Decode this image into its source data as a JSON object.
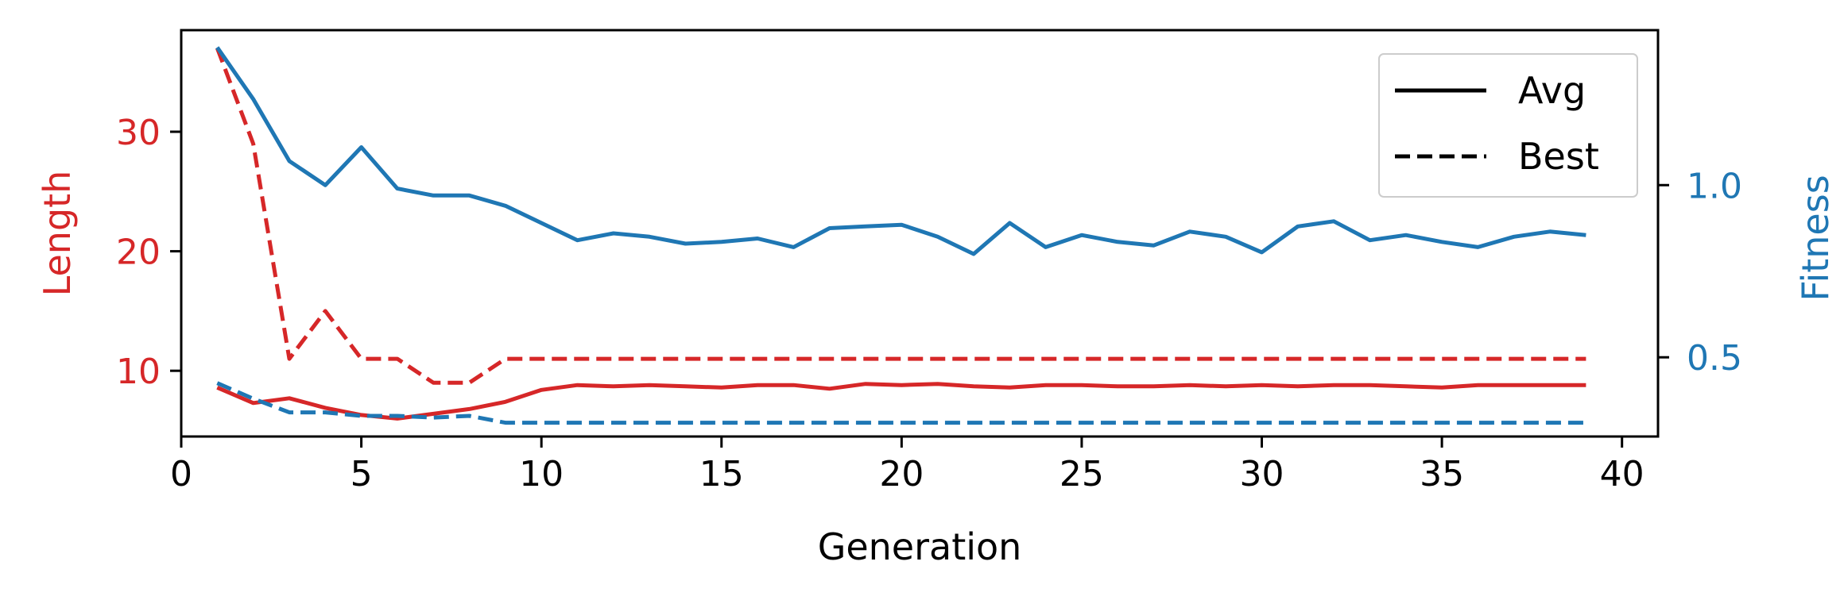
{
  "chart_data": {
    "type": "line",
    "xlabel": "Generation",
    "ylabel_left": "Length",
    "ylabel_right": "Fitness",
    "xlim": [
      0,
      41
    ],
    "ylim_left": [
      4.5,
      38.5
    ],
    "ylim_right": [
      0.27,
      1.45
    ],
    "xticks": [
      0,
      5,
      10,
      15,
      20,
      25,
      30,
      35,
      40
    ],
    "yticks_left": [
      10,
      20,
      30
    ],
    "yticks_right": [
      0.5,
      1.0
    ],
    "xtick_labels": [
      "0",
      "5",
      "10",
      "15",
      "20",
      "25",
      "30",
      "35",
      "40"
    ],
    "yticks_left_labels": [
      "10",
      "20",
      "30"
    ],
    "yticks_right_labels": [
      "0.5",
      "1.0"
    ],
    "grid": false,
    "legend_position": "top-right",
    "legend": [
      {
        "label": "Avg",
        "style": "solid"
      },
      {
        "label": "Best",
        "style": "dashed"
      }
    ],
    "colors": {
      "length": "#d62728",
      "fitness": "#1f77b4"
    },
    "x": [
      1,
      2,
      3,
      4,
      5,
      6,
      7,
      8,
      9,
      10,
      11,
      12,
      13,
      14,
      15,
      16,
      17,
      18,
      19,
      20,
      21,
      22,
      23,
      24,
      25,
      26,
      27,
      28,
      29,
      30,
      31,
      32,
      33,
      34,
      35,
      36,
      37,
      38,
      39
    ],
    "series": [
      {
        "axis": "left",
        "color": "#d62728",
        "style": "solid",
        "values": [
          8.6,
          7.3,
          7.7,
          6.9,
          6.3,
          6.0,
          6.4,
          6.8,
          7.4,
          8.4,
          8.8,
          8.7,
          8.8,
          8.7,
          8.6,
          8.8,
          8.8,
          8.5,
          8.9,
          8.8,
          8.9,
          8.7,
          8.6,
          8.8,
          8.8,
          8.7,
          8.7,
          8.8,
          8.7,
          8.8,
          8.7,
          8.8,
          8.8,
          8.7,
          8.6,
          8.8,
          8.8,
          8.8,
          8.8
        ]
      },
      {
        "axis": "left",
        "color": "#d62728",
        "style": "dashed",
        "values": [
          37.0,
          29.0,
          11.0,
          15.0,
          11.0,
          11.0,
          9.0,
          9.0,
          11.0,
          11.0,
          11.0,
          11.0,
          11.0,
          11.0,
          11.0,
          11.0,
          11.0,
          11.0,
          11.0,
          11.0,
          11.0,
          11.0,
          11.0,
          11.0,
          11.0,
          11.0,
          11.0,
          11.0,
          11.0,
          11.0,
          11.0,
          11.0,
          11.0,
          11.0,
          11.0,
          11.0,
          11.0,
          11.0,
          11.0
        ]
      },
      {
        "axis": "right",
        "color": "#1f77b4",
        "style": "solid",
        "values": [
          1.4,
          1.25,
          1.07,
          1.0,
          1.11,
          0.99,
          0.97,
          0.97,
          0.94,
          0.89,
          0.84,
          0.86,
          0.85,
          0.83,
          0.835,
          0.845,
          0.82,
          0.875,
          0.88,
          0.885,
          0.85,
          0.8,
          0.89,
          0.82,
          0.855,
          0.835,
          0.825,
          0.865,
          0.85,
          0.805,
          0.88,
          0.895,
          0.84,
          0.855,
          0.835,
          0.82,
          0.85,
          0.865,
          0.855
        ]
      },
      {
        "axis": "right",
        "color": "#1f77b4",
        "style": "dashed",
        "values": [
          0.425,
          0.38,
          0.34,
          0.34,
          0.33,
          0.33,
          0.325,
          0.33,
          0.31,
          0.31,
          0.31,
          0.31,
          0.31,
          0.31,
          0.31,
          0.31,
          0.31,
          0.31,
          0.31,
          0.31,
          0.31,
          0.31,
          0.31,
          0.31,
          0.31,
          0.31,
          0.31,
          0.31,
          0.31,
          0.31,
          0.31,
          0.31,
          0.31,
          0.31,
          0.31,
          0.31,
          0.31,
          0.31,
          0.31
        ]
      }
    ]
  }
}
